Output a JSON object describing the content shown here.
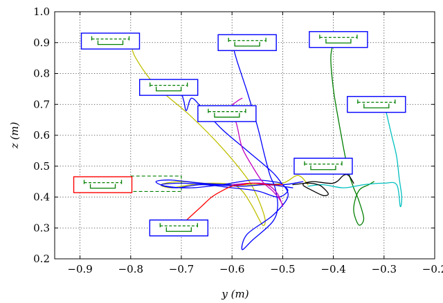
{
  "chart_data": {
    "type": "line",
    "title": "",
    "xlabel": "y (m)",
    "ylabel": "z (m)",
    "xlim": [
      -0.95,
      -0.2
    ],
    "ylim": [
      0.2,
      1.0
    ],
    "xticks": [
      "−0.9",
      "−0.8",
      "−0.7",
      "−0.6",
      "−0.5",
      "−0.4",
      "−0.3",
      "−0.2"
    ],
    "yticks": [
      "0.2",
      "0.3",
      "0.4",
      "0.5",
      "0.6",
      "0.7",
      "0.8",
      "0.9",
      "1.0"
    ],
    "grid": true,
    "legend": "none",
    "colors": {
      "olive": "#bfbf00",
      "blue": "#0000ff",
      "green": "#007f00",
      "cyan": "#00bfbf",
      "magenta": "#bf00bf",
      "red": "#ff0000",
      "black": "#000000",
      "box_blue": "#0000ff",
      "box_red": "#ff0000",
      "hole": "#007f00"
    },
    "start_boxes": [
      {
        "y": -0.84,
        "z": 0.905,
        "color": "blue"
      },
      {
        "y": -0.57,
        "z": 0.9,
        "color": "blue"
      },
      {
        "y": -0.39,
        "z": 0.91,
        "color": "blue"
      },
      {
        "y": -0.725,
        "z": 0.755,
        "color": "blue"
      },
      {
        "y": -0.61,
        "z": 0.67,
        "color": "blue"
      },
      {
        "y": -0.315,
        "z": 0.7,
        "color": "blue"
      },
      {
        "y": -0.42,
        "z": 0.5,
        "color": "blue"
      },
      {
        "y": -0.705,
        "z": 0.3,
        "color": "blue"
      },
      {
        "y": -0.855,
        "z": 0.44,
        "color": "red"
      }
    ],
    "target": {
      "y": -0.75,
      "z": 0.443,
      "width": 0.1,
      "height": 0.05
    },
    "series": [
      {
        "color": "olive",
        "y": [
          -0.8,
          -0.79,
          -0.75,
          -0.68,
          -0.62,
          -0.57,
          -0.55,
          -0.535,
          -0.54,
          -0.56,
          -0.58,
          -0.6,
          -0.64,
          -0.68,
          -0.72,
          -0.74,
          -0.7,
          -0.62,
          -0.55,
          -0.5,
          -0.47,
          -0.45
        ],
        "z": [
          0.9,
          0.85,
          0.76,
          0.66,
          0.56,
          0.46,
          0.4,
          0.33,
          0.31,
          0.37,
          0.42,
          0.44,
          0.445,
          0.44,
          0.43,
          0.44,
          0.45,
          0.44,
          0.44,
          0.445,
          0.47,
          0.44
        ]
      },
      {
        "color": "blue",
        "y": [
          -0.6,
          -0.59,
          -0.57,
          -0.55,
          -0.535,
          -0.525,
          -0.515,
          -0.51,
          -0.52,
          -0.56,
          -0.58,
          -0.57,
          -0.52,
          -0.49,
          -0.5,
          -0.52,
          -0.56,
          -0.62,
          -0.68,
          -0.73,
          -0.75,
          -0.72,
          -0.66,
          -0.6,
          -0.55,
          -0.5,
          -0.46
        ],
        "z": [
          0.9,
          0.84,
          0.74,
          0.63,
          0.53,
          0.47,
          0.43,
          0.37,
          0.32,
          0.26,
          0.23,
          0.28,
          0.34,
          0.4,
          0.44,
          0.45,
          0.455,
          0.44,
          0.43,
          0.435,
          0.45,
          0.455,
          0.445,
          0.44,
          0.445,
          0.44,
          0.45
        ]
      },
      {
        "color": "blue",
        "y": [
          -0.7,
          -0.695,
          -0.69,
          -0.68,
          -0.66,
          -0.62,
          -0.57,
          -0.52,
          -0.5,
          -0.49,
          -0.51,
          -0.55,
          -0.6,
          -0.66,
          -0.71,
          -0.74,
          -0.7,
          -0.64,
          -0.58,
          -0.53,
          -0.48
        ],
        "z": [
          0.74,
          0.71,
          0.68,
          0.72,
          0.69,
          0.62,
          0.55,
          0.48,
          0.44,
          0.42,
          0.4,
          0.42,
          0.43,
          0.44,
          0.43,
          0.44,
          0.445,
          0.44,
          0.435,
          0.44,
          0.43
        ]
      },
      {
        "color": "green",
        "y": [
          -0.4,
          -0.405,
          -0.4,
          -0.39,
          -0.38,
          -0.37,
          -0.36,
          -0.35,
          -0.34,
          -0.35,
          -0.36,
          -0.35,
          -0.33,
          -0.32
        ],
        "z": [
          0.9,
          0.85,
          0.75,
          0.65,
          0.56,
          0.48,
          0.43,
          0.39,
          0.33,
          0.31,
          0.36,
          0.42,
          0.44,
          0.45
        ]
      },
      {
        "color": "cyan",
        "y": [
          -0.3,
          -0.295,
          -0.285,
          -0.275,
          -0.27,
          -0.265,
          -0.268,
          -0.275,
          -0.3,
          -0.34,
          -0.38,
          -0.42,
          -0.45
        ],
        "z": [
          0.7,
          0.67,
          0.6,
          0.53,
          0.46,
          0.4,
          0.37,
          0.44,
          0.445,
          0.44,
          0.43,
          0.44,
          0.435
        ]
      },
      {
        "color": "magenta",
        "y": [
          -0.58,
          -0.59,
          -0.6,
          -0.59,
          -0.58,
          -0.56,
          -0.54,
          -0.52,
          -0.505,
          -0.5,
          -0.51,
          -0.53,
          -0.56,
          -0.6
        ],
        "z": [
          0.72,
          0.71,
          0.69,
          0.63,
          0.56,
          0.5,
          0.45,
          0.42,
          0.39,
          0.37,
          0.41,
          0.44,
          0.445,
          0.44
        ]
      },
      {
        "color": "red",
        "y": [
          -0.7,
          -0.68,
          -0.66,
          -0.64,
          -0.62,
          -0.6,
          -0.58,
          -0.56,
          -0.53,
          -0.5
        ],
        "z": [
          0.31,
          0.34,
          0.37,
          0.4,
          0.42,
          0.435,
          0.44,
          0.445,
          0.44,
          0.44
        ]
      },
      {
        "color": "black",
        "y": [
          -0.48,
          -0.45,
          -0.43,
          -0.42,
          -0.41,
          -0.42,
          -0.44,
          -0.46,
          -0.44,
          -0.4,
          -0.38,
          -0.37,
          -0.36
        ],
        "z": [
          0.44,
          0.445,
          0.44,
          0.43,
          0.41,
          0.405,
          0.42,
          0.44,
          0.45,
          0.445,
          0.47,
          0.47,
          0.445
        ]
      }
    ]
  }
}
